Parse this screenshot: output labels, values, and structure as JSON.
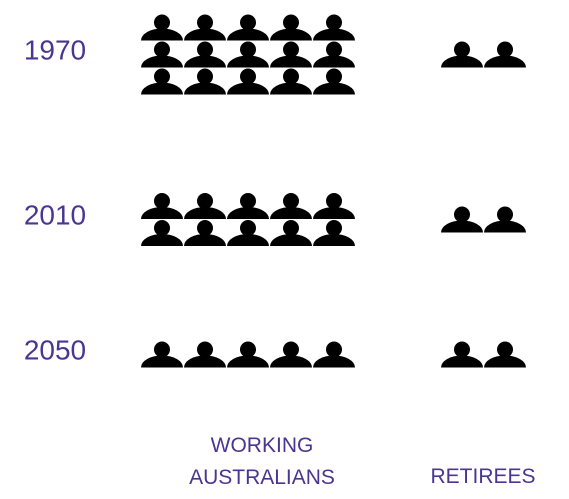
{
  "chart_data": {
    "type": "pictogram",
    "categories": [
      "1970",
      "2010",
      "2050"
    ],
    "series": [
      {
        "name": "WORKING AUSTRALIANS",
        "color": "#000000",
        "values": [
          15,
          10,
          5
        ]
      },
      {
        "name": "RETIREES",
        "color": "#000000",
        "values": [
          2,
          2,
          2
        ]
      }
    ],
    "label_color": "#4b3592"
  }
}
